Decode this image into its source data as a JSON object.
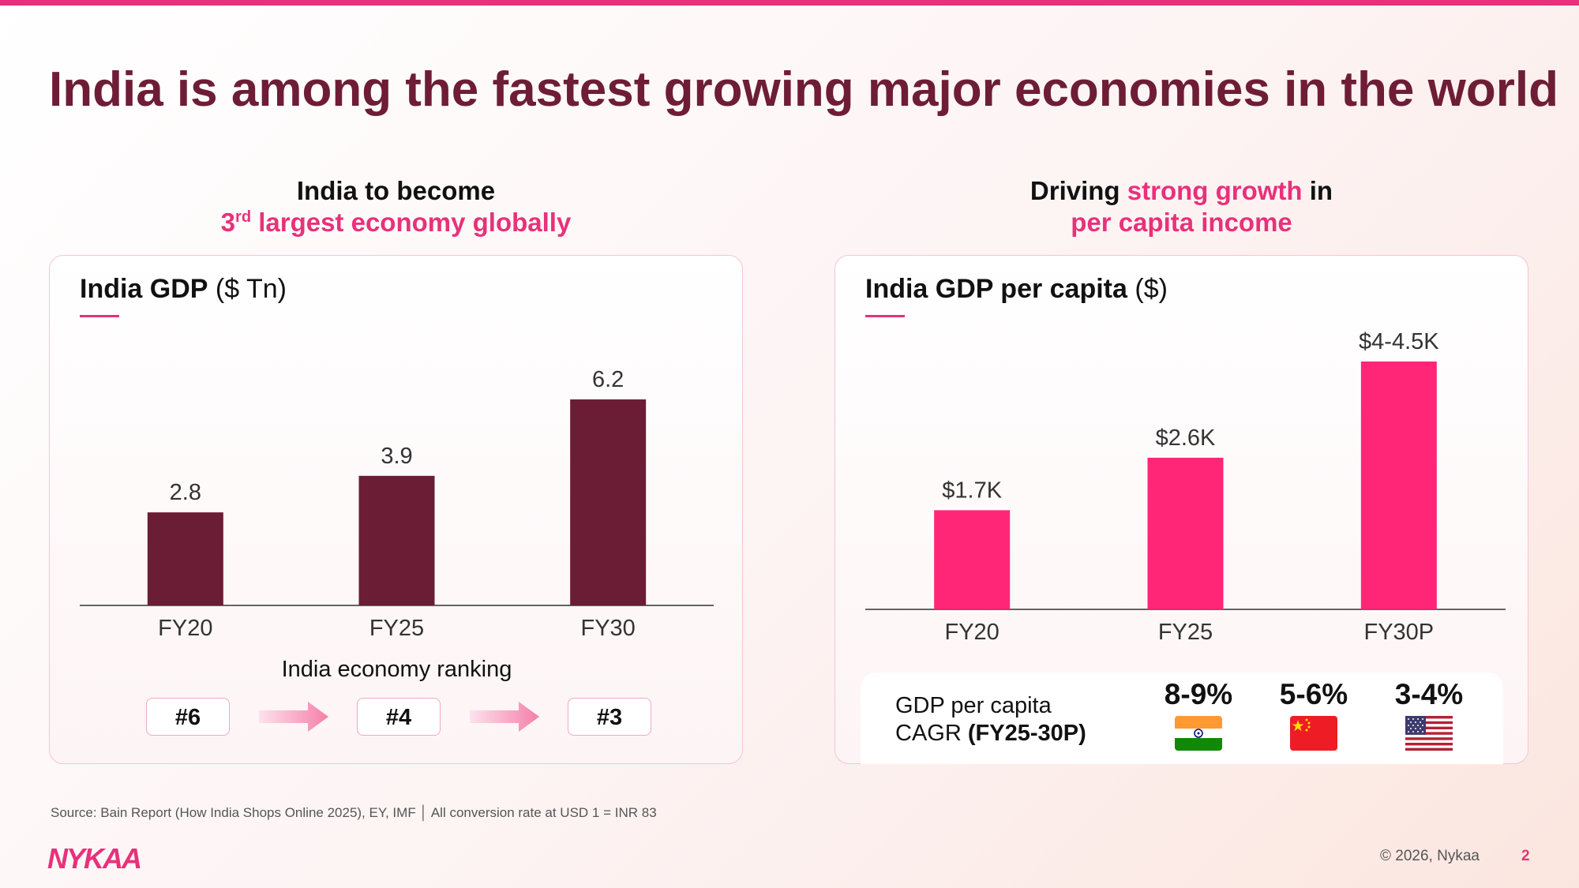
{
  "title": "India is among the fastest growing major economies in the world",
  "left_heading": {
    "line1": "India to become",
    "line2_rank": "3",
    "line2_sup": "rd",
    "line2_rest": "largest economy globally"
  },
  "right_heading": {
    "part1": "Driving",
    "part2_pink": "strong growth",
    "part3": "in",
    "line2_pink": "per capita income"
  },
  "gdp_card": {
    "title_bold": "India GDP",
    "title_unit": "($ Tn)",
    "ranking_label": "India economy ranking",
    "rankings": [
      "#6",
      "#4",
      "#3"
    ]
  },
  "per_capita_card": {
    "title_bold": "India GDP per capita",
    "title_unit": "($)"
  },
  "cagr": {
    "label_line1": "GDP per capita",
    "label_line2_prefix": "CAGR",
    "label_line2_bold": "(FY25-30P)",
    "items": [
      {
        "value": "8-9%",
        "flag": "india-flag-icon"
      },
      {
        "value": "5-6%",
        "flag": "china-flag-icon"
      },
      {
        "value": "3-4%",
        "flag": "usa-flag-icon"
      }
    ]
  },
  "chart_data": [
    {
      "type": "bar",
      "title": "India GDP ($ Tn)",
      "categories": [
        "FY20",
        "FY25",
        "FY30"
      ],
      "values": [
        2.8,
        3.9,
        6.2
      ],
      "labels": [
        "2.8",
        "3.9",
        "6.2"
      ],
      "ylim": [
        0,
        6.2
      ],
      "color": "#6b1d35",
      "grid": false
    },
    {
      "type": "bar",
      "title": "India GDP per capita ($)",
      "categories": [
        "FY20",
        "FY25",
        "FY30P"
      ],
      "values": [
        1700,
        2600,
        4250
      ],
      "labels": [
        "$1.7K",
        "$2.6K",
        "$4-4.5K"
      ],
      "ylim": [
        0,
        4250
      ],
      "color": "#ff2677",
      "grid": false
    }
  ],
  "footer": {
    "source": "Source: Bain Report (How India Shops Online 2025), EY, IMF │ All conversion rate at USD 1 = INR 83",
    "logo": "NYKAA",
    "copyright": "© 2026, Nykaa",
    "page": "2"
  },
  "colors": {
    "accent": "#e8317a",
    "title": "#6e1d37",
    "gdp_bar": "#6b1d35",
    "per_capita_bar": "#ff2677"
  }
}
